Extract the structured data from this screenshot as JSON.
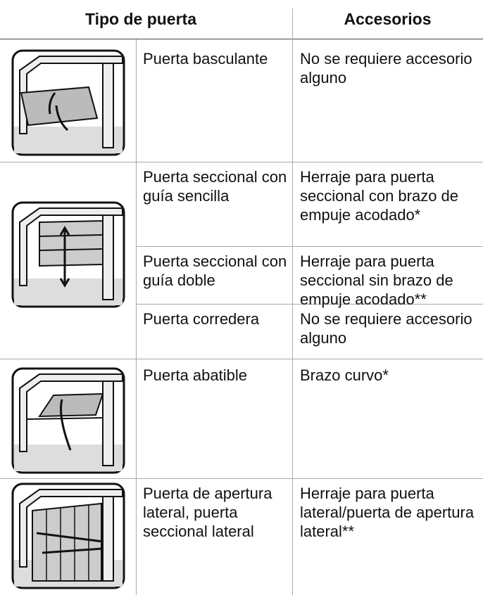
{
  "header": {
    "door_type": "Tipo de puerta",
    "accessories": "Accesorios"
  },
  "rows": [
    {
      "door": "Puerta basculante",
      "accessory": "No se requiere accesorio alguno"
    },
    {
      "door": "Puerta seccional con guía sencilla",
      "accessory": "Herraje para puerta seccional con brazo de empuje acodado*"
    },
    {
      "door": "Puerta seccional con guía doble",
      "accessory": "Herraje para puerta seccional sin brazo de empuje acodado**"
    },
    {
      "door": "Puerta corredera",
      "accessory": "No se requiere accesorio alguno"
    },
    {
      "door": "Puerta abatible",
      "accessory": "Brazo curvo*"
    },
    {
      "door": "Puerta de apertura lateral, puerta seccional lateral",
      "accessory": "Herraje para puerta lateral/puerta de apertura lateral**"
    }
  ]
}
